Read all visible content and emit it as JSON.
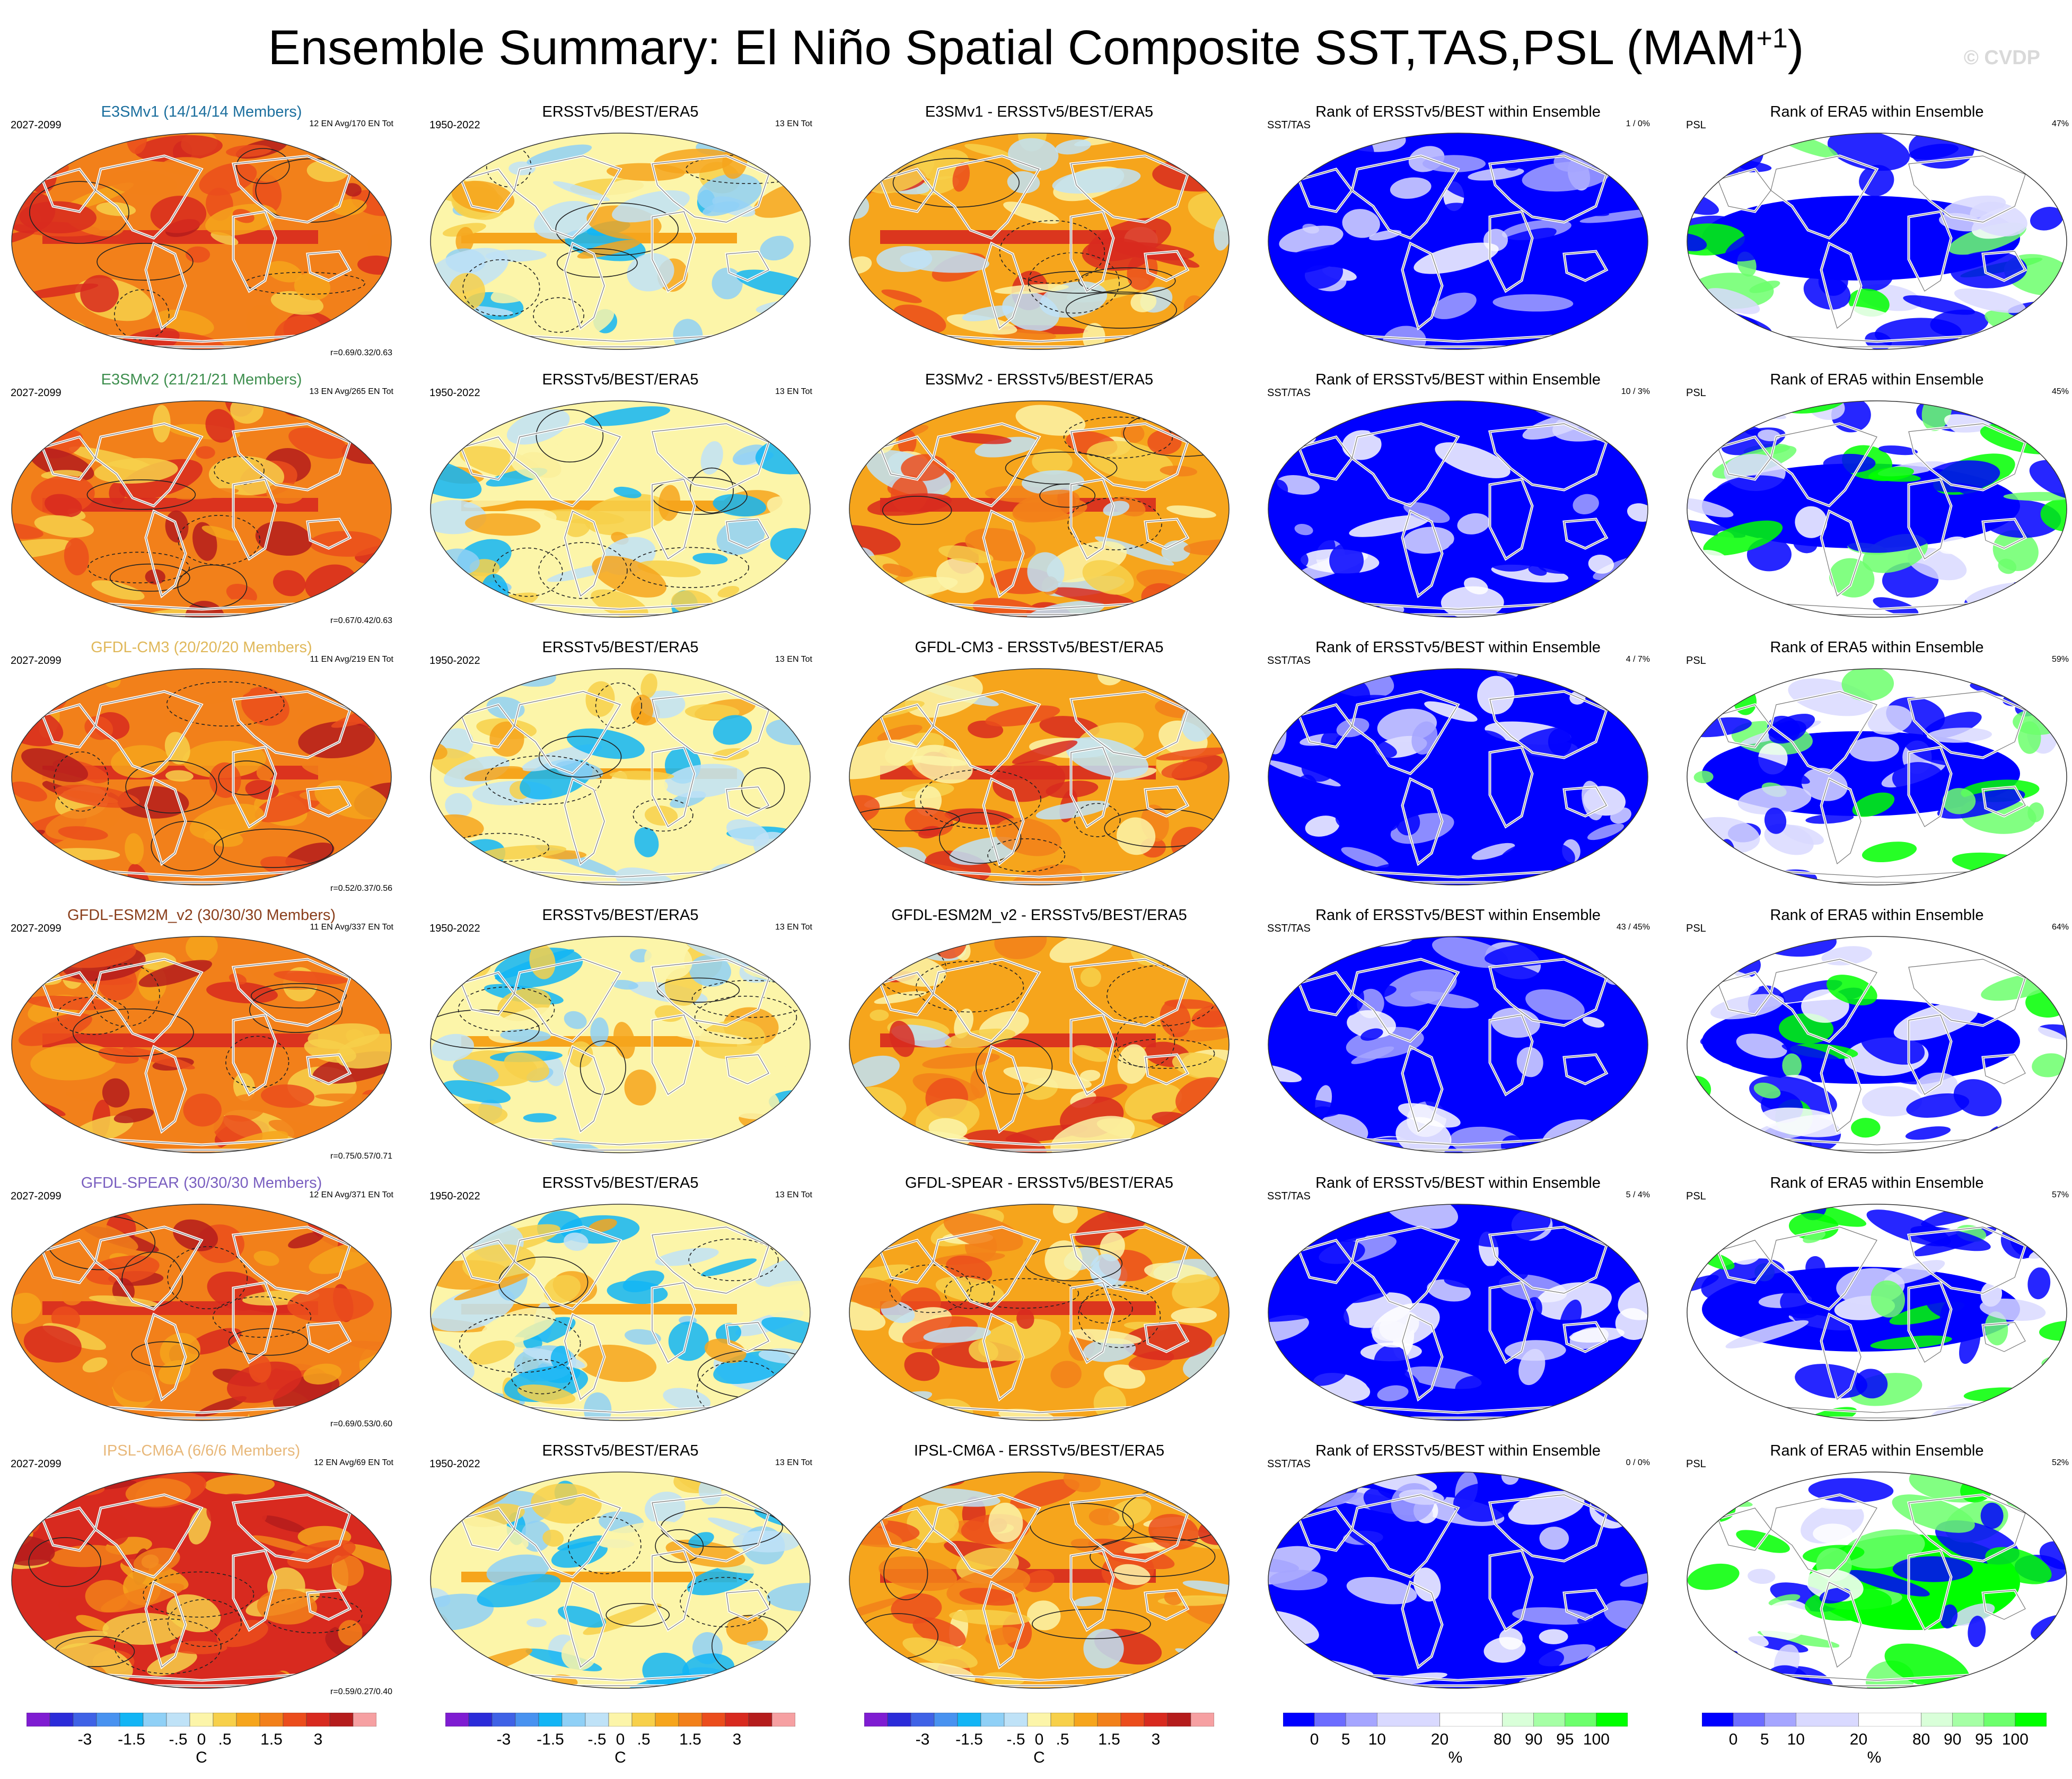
{
  "title_main": "Ensemble Summary: El Niño Spatial Composite SST,TAS,PSL (MAM",
  "title_sup": "+1",
  "title_end": ")",
  "copyright": "© CVDP",
  "colors": {
    "anom_scale": [
      "#7f1cd2",
      "#2b2bd9",
      "#3f62e6",
      "#4892f0",
      "#12b5f5",
      "#8fd0f6",
      "#bfe2f7",
      "#fcf5a9",
      "#f7d04a",
      "#f6a51c",
      "#f2801a",
      "#eb4d1c",
      "#d82a1f",
      "#b51c1c",
      "#f6a0a2"
    ],
    "rank_scale": [
      "#0000ff",
      "#6c6cff",
      "#a5a5ff",
      "#d9d9ff",
      "#ffffff",
      "#d9ffd9",
      "#a5ffa5",
      "#6cff6c",
      "#00ff00"
    ]
  },
  "rows": [
    {
      "model": "E3SMv1 (14/14/14 Members)",
      "model_color": "#1c6f9e",
      "model_years": "2027-2099",
      "model_info": "12 EN Avg/170 EN Tot",
      "corr": "r=0.69/0.32/0.63",
      "obs_title": "ERSSTv5/BEST/ERA5",
      "obs_years": "1950-2022",
      "obs_info": "13 EN Tot",
      "diff_title": "E3SMv1 - ERSSTv5/BEST/ERA5",
      "rank_title": "Rank of ERSSTv5/BEST within Ensemble",
      "rank_left": "SST/TAS",
      "rank_right": "1 /  0%",
      "psl_title": "Rank of ERA5 within Ensemble",
      "psl_left": "PSL",
      "psl_right": "47%"
    },
    {
      "model": "E3SMv2 (21/21/21 Members)",
      "model_color": "#3f8f4f",
      "model_years": "2027-2099",
      "model_info": "13 EN Avg/265 EN Tot",
      "corr": "r=0.67/0.42/0.63",
      "obs_title": "ERSSTv5/BEST/ERA5",
      "obs_years": "1950-2022",
      "obs_info": "13 EN Tot",
      "diff_title": "E3SMv2 - ERSSTv5/BEST/ERA5",
      "rank_title": "Rank of ERSSTv5/BEST within Ensemble",
      "rank_left": "SST/TAS",
      "rank_right": "10 /  3%",
      "psl_title": "Rank of ERA5 within Ensemble",
      "psl_left": "PSL",
      "psl_right": "45%"
    },
    {
      "model": "GFDL-CM3 (20/20/20 Members)",
      "model_color": "#e0b85a",
      "model_years": "2027-2099",
      "model_info": "11 EN Avg/219 EN Tot",
      "corr": "r=0.52/0.37/0.56",
      "obs_title": "ERSSTv5/BEST/ERA5",
      "obs_years": "1950-2022",
      "obs_info": "13 EN Tot",
      "diff_title": "GFDL-CM3 - ERSSTv5/BEST/ERA5",
      "rank_title": "Rank of ERSSTv5/BEST within Ensemble",
      "rank_left": "SST/TAS",
      "rank_right": "4 /  7%",
      "psl_title": "Rank of ERA5 within Ensemble",
      "psl_left": "PSL",
      "psl_right": "59%"
    },
    {
      "model": "GFDL-ESM2M_v2 (30/30/30 Members)",
      "model_color": "#8a3f1c",
      "model_years": "2027-2099",
      "model_info": "11 EN Avg/337 EN Tot",
      "corr": "r=0.75/0.57/0.71",
      "obs_title": "ERSSTv5/BEST/ERA5",
      "obs_years": "1950-2022",
      "obs_info": "13 EN Tot",
      "diff_title": "GFDL-ESM2M_v2 - ERSSTv5/BEST/ERA5",
      "rank_title": "Rank of ERSSTv5/BEST within Ensemble",
      "rank_left": "SST/TAS",
      "rank_right": "43 /  45%",
      "psl_title": "Rank of ERA5 within Ensemble",
      "psl_left": "PSL",
      "psl_right": "64%"
    },
    {
      "model": "GFDL-SPEAR (30/30/30 Members)",
      "model_color": "#7a5fc0",
      "model_years": "2027-2099",
      "model_info": "12 EN Avg/371 EN Tot",
      "corr": "r=0.69/0.53/0.60",
      "obs_title": "ERSSTv5/BEST/ERA5",
      "obs_years": "1950-2022",
      "obs_info": "13 EN Tot",
      "diff_title": "GFDL-SPEAR - ERSSTv5/BEST/ERA5",
      "rank_title": "Rank of ERSSTv5/BEST within Ensemble",
      "rank_left": "SST/TAS",
      "rank_right": "5 /  4%",
      "psl_title": "Rank of ERA5 within Ensemble",
      "psl_left": "PSL",
      "psl_right": "57%"
    },
    {
      "model": "IPSL-CM6A (6/6/6 Members)",
      "model_color": "#e8b87a",
      "model_years": "2027-2099",
      "model_info": "12 EN Avg/69 EN Tot",
      "corr": "r=0.59/0.27/0.40",
      "obs_title": "ERSSTv5/BEST/ERA5",
      "obs_years": "1950-2022",
      "obs_info": "13 EN Tot",
      "diff_title": "IPSL-CM6A - ERSSTv5/BEST/ERA5",
      "rank_title": "Rank of ERSSTv5/BEST within Ensemble",
      "rank_left": "SST/TAS",
      "rank_right": "0 /  0%",
      "psl_title": "Rank of ERA5 within Ensemble",
      "psl_left": "PSL",
      "psl_right": "52%"
    }
  ],
  "colorbars": {
    "anom_labels": [
      "-3",
      "-1.5",
      "-.5",
      "0",
      ".5",
      "1.5",
      "3"
    ],
    "anom_unit": "C",
    "rank_labels": [
      "0",
      "5",
      "10",
      "20",
      "80",
      "90",
      "95",
      "100"
    ],
    "rank_unit": "%"
  }
}
